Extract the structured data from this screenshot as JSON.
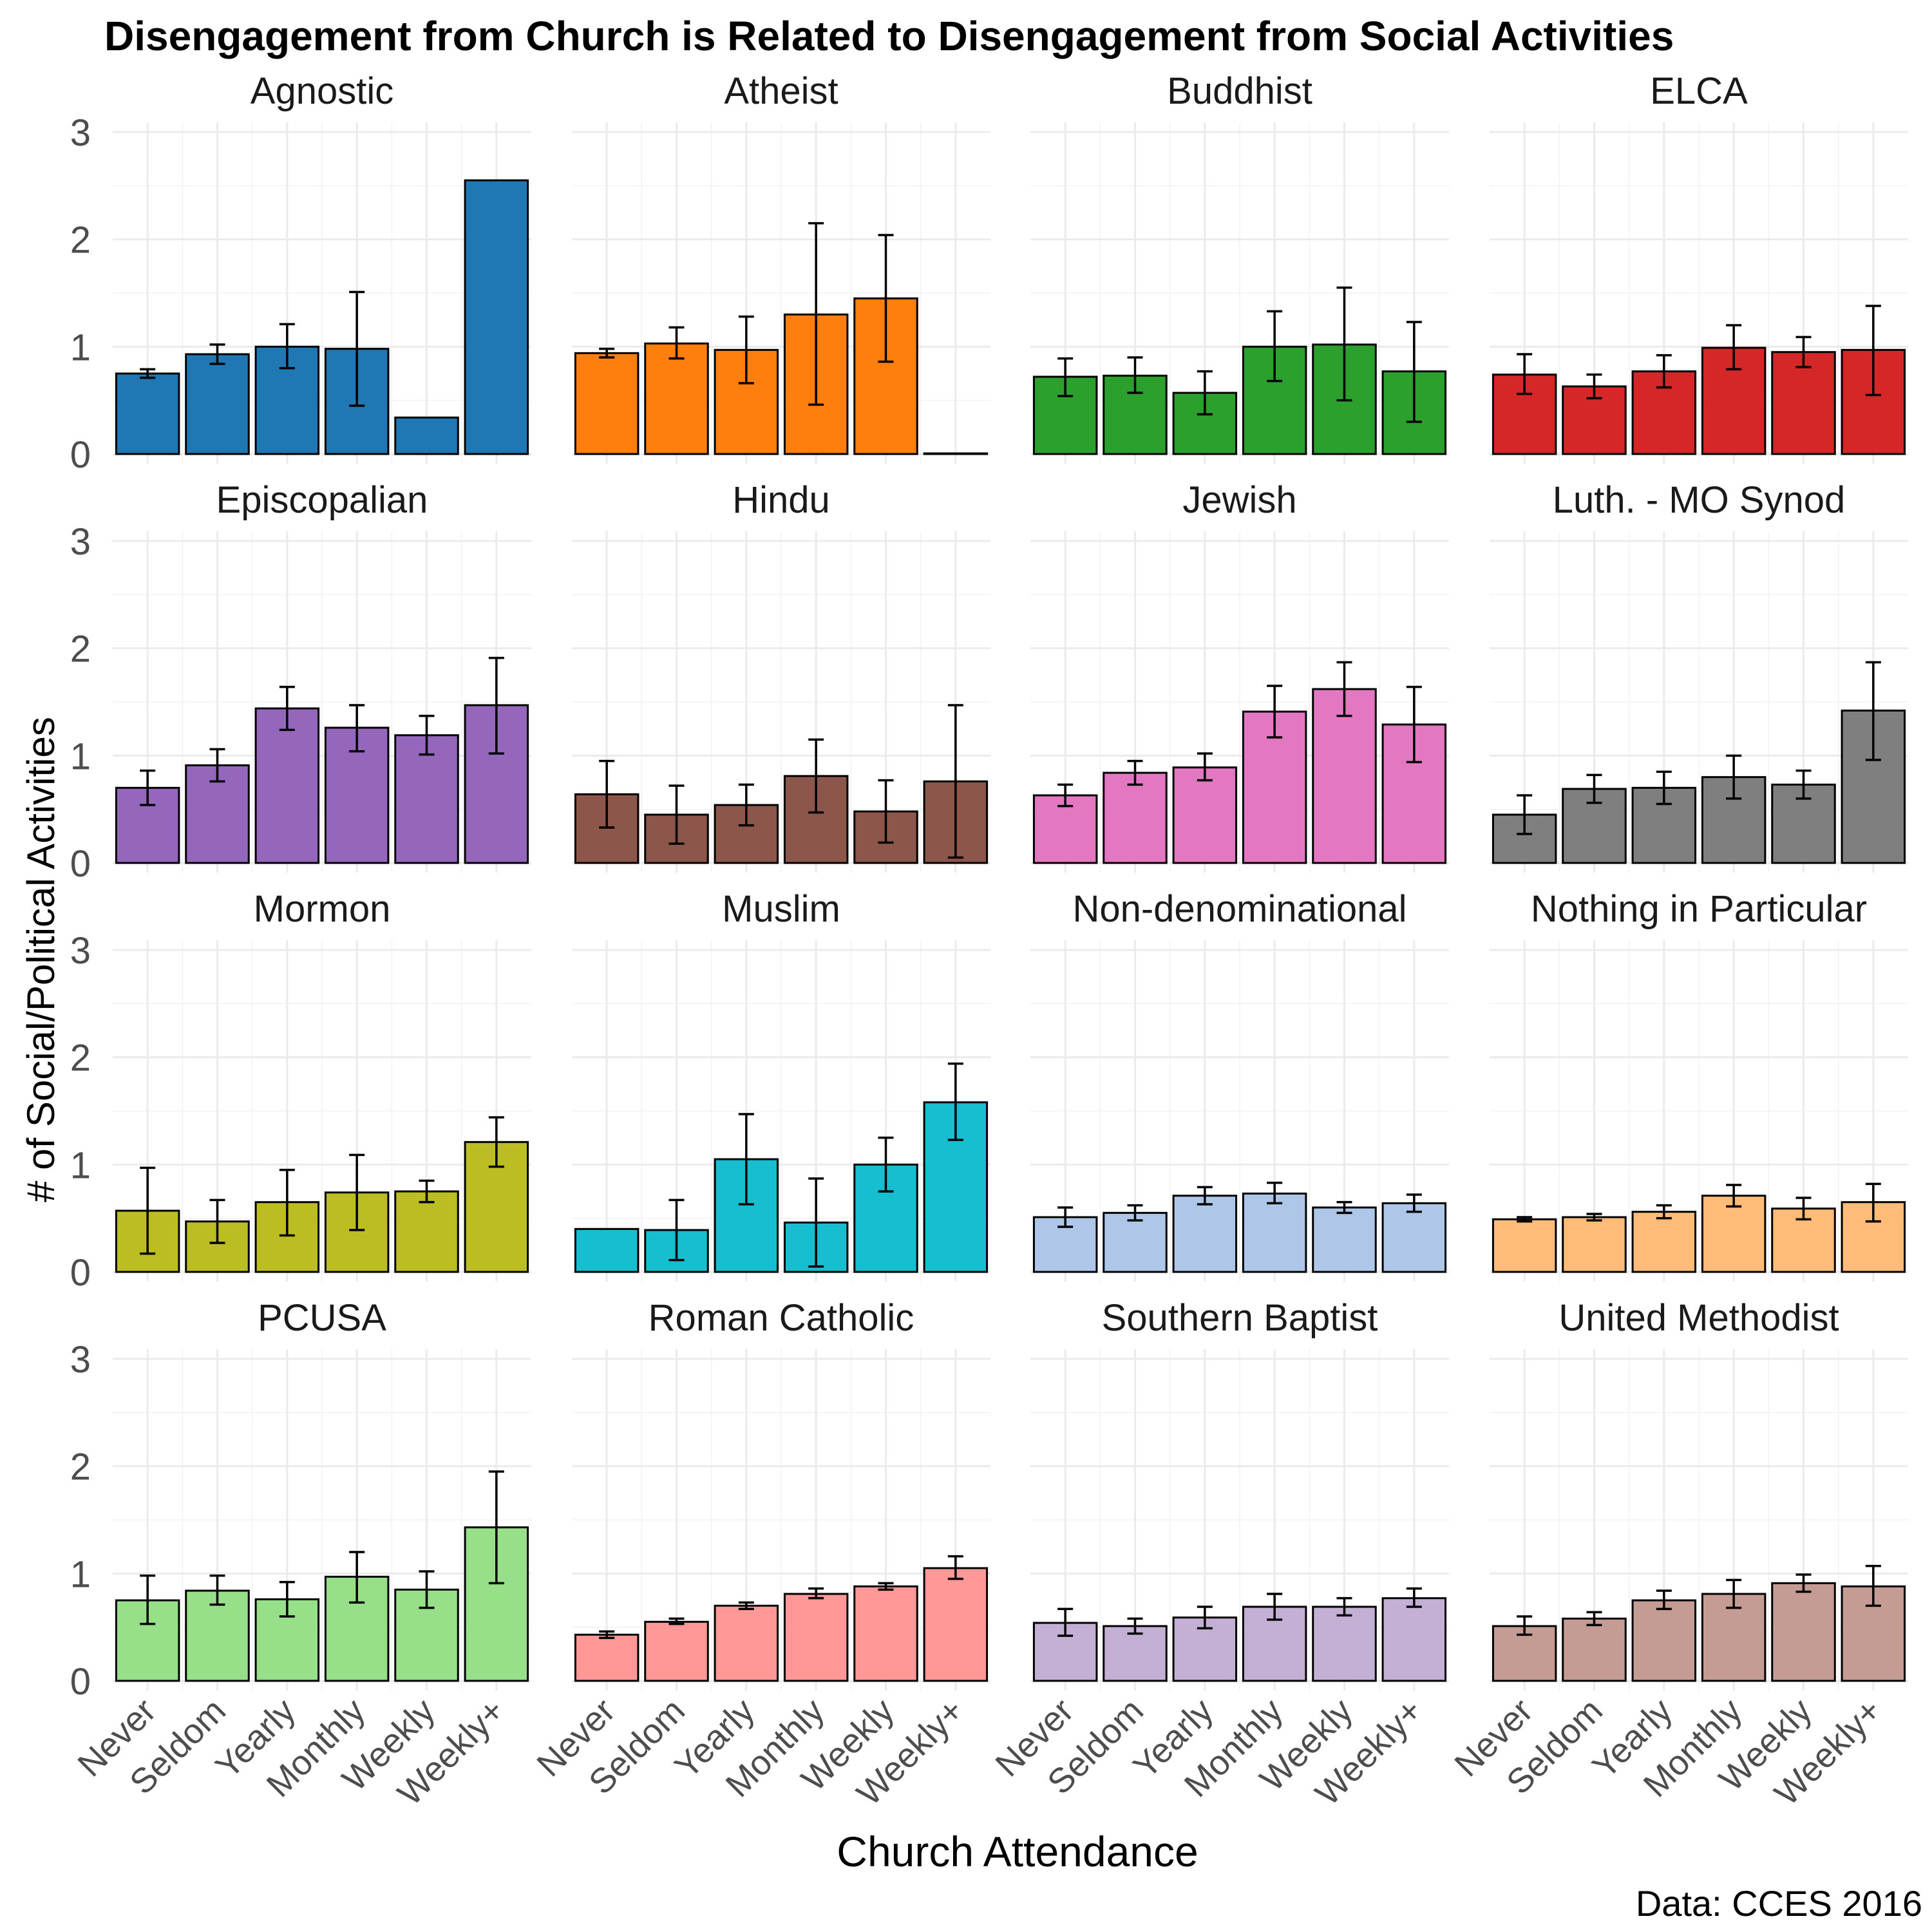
{
  "chart_data": {
    "type": "bar",
    "title": "Disengagement from Church is Related to Disengagement from Social Activities",
    "xlabel": "Church Attendance",
    "ylabel": "# of Social/Political Activities",
    "caption": "Data: CCES 2016",
    "categories": [
      "Never",
      "Seldom",
      "Yearly",
      "Monthly",
      "Weekly",
      "Weekly+"
    ],
    "ylim": [
      0,
      3
    ],
    "yticks": [
      0,
      1,
      2,
      3
    ],
    "grid": true,
    "facets": [
      {
        "name": "Agnostic",
        "color": "#1f77b4",
        "values": [
          0.75,
          0.93,
          1.0,
          0.98,
          0.34,
          2.55
        ],
        "err_low": [
          0.71,
          0.84,
          0.8,
          0.45,
          null,
          null
        ],
        "err_high": [
          0.79,
          1.02,
          1.21,
          1.51,
          null,
          null
        ]
      },
      {
        "name": "Atheist",
        "color": "#ff7f0e",
        "values": [
          0.94,
          1.03,
          0.97,
          1.3,
          1.45,
          0.0
        ],
        "err_low": [
          0.9,
          0.89,
          0.66,
          0.46,
          0.86,
          null
        ],
        "err_high": [
          0.98,
          1.18,
          1.28,
          2.15,
          2.04,
          null
        ]
      },
      {
        "name": "Buddhist",
        "color": "#2ca02c",
        "values": [
          0.72,
          0.73,
          0.57,
          1.0,
          1.02,
          0.77
        ],
        "err_low": [
          0.54,
          0.57,
          0.37,
          0.68,
          0.5,
          0.3
        ],
        "err_high": [
          0.89,
          0.9,
          0.77,
          1.33,
          1.55,
          1.23
        ]
      },
      {
        "name": "ELCA",
        "color": "#d62728",
        "values": [
          0.74,
          0.63,
          0.77,
          0.99,
          0.95,
          0.97
        ],
        "err_low": [
          0.56,
          0.52,
          0.62,
          0.79,
          0.81,
          0.55
        ],
        "err_high": [
          0.93,
          0.74,
          0.92,
          1.2,
          1.09,
          1.38
        ]
      },
      {
        "name": "Episcopalian",
        "color": "#9467bd",
        "values": [
          0.7,
          0.91,
          1.44,
          1.26,
          1.19,
          1.47
        ],
        "err_low": [
          0.54,
          0.76,
          1.24,
          1.04,
          1.01,
          1.02
        ],
        "err_high": [
          0.86,
          1.06,
          1.64,
          1.47,
          1.37,
          1.91
        ]
      },
      {
        "name": "Hindu",
        "color": "#8c564b",
        "values": [
          0.64,
          0.45,
          0.54,
          0.81,
          0.48,
          0.76
        ],
        "err_low": [
          0.33,
          0.18,
          0.35,
          0.47,
          0.19,
          0.05
        ],
        "err_high": [
          0.95,
          0.72,
          0.73,
          1.15,
          0.77,
          1.47
        ]
      },
      {
        "name": "Jewish",
        "color": "#e377c2",
        "values": [
          0.63,
          0.84,
          0.89,
          1.41,
          1.62,
          1.29
        ],
        "err_low": [
          0.53,
          0.73,
          0.77,
          1.17,
          1.37,
          0.94
        ],
        "err_high": [
          0.73,
          0.95,
          1.02,
          1.65,
          1.87,
          1.64
        ]
      },
      {
        "name": "Luth. - MO Synod",
        "color": "#7f7f7f",
        "values": [
          0.45,
          0.69,
          0.7,
          0.8,
          0.73,
          1.42
        ],
        "err_low": [
          0.27,
          0.56,
          0.55,
          0.6,
          0.6,
          0.96
        ],
        "err_high": [
          0.63,
          0.82,
          0.85,
          1.0,
          0.86,
          1.87
        ]
      },
      {
        "name": "Mormon",
        "color": "#bcbd22",
        "values": [
          0.57,
          0.47,
          0.65,
          0.74,
          0.75,
          1.21
        ],
        "err_low": [
          0.17,
          0.27,
          0.34,
          0.39,
          0.65,
          0.98
        ],
        "err_high": [
          0.97,
          0.67,
          0.95,
          1.09,
          0.85,
          1.44
        ]
      },
      {
        "name": "Muslim",
        "color": "#17becf",
        "values": [
          0.4,
          0.39,
          1.05,
          0.46,
          1.0,
          1.58
        ],
        "err_low": [
          null,
          0.11,
          0.63,
          0.05,
          0.75,
          1.23
        ],
        "err_high": [
          null,
          0.67,
          1.47,
          0.87,
          1.25,
          1.94
        ]
      },
      {
        "name": "Non-denominational",
        "color": "#aec7e8",
        "values": [
          0.51,
          0.55,
          0.71,
          0.73,
          0.6,
          0.64
        ],
        "err_low": [
          0.42,
          0.48,
          0.63,
          0.64,
          0.55,
          0.56
        ],
        "err_high": [
          0.6,
          0.62,
          0.79,
          0.83,
          0.65,
          0.72
        ]
      },
      {
        "name": "Nothing in Particular",
        "color": "#ffbb78",
        "values": [
          0.49,
          0.51,
          0.56,
          0.71,
          0.59,
          0.65
        ],
        "err_low": [
          0.47,
          0.48,
          0.5,
          0.61,
          0.49,
          0.47
        ],
        "err_high": [
          0.51,
          0.54,
          0.62,
          0.81,
          0.69,
          0.82
        ]
      },
      {
        "name": "PCUSA",
        "color": "#98df8a",
        "values": [
          0.75,
          0.84,
          0.76,
          0.97,
          0.85,
          1.43
        ],
        "err_low": [
          0.53,
          0.71,
          0.6,
          0.73,
          0.68,
          0.91
        ],
        "err_high": [
          0.98,
          0.98,
          0.92,
          1.2,
          1.02,
          1.95
        ]
      },
      {
        "name": "Roman Catholic",
        "color": "#ff9896",
        "values": [
          0.43,
          0.55,
          0.7,
          0.81,
          0.88,
          1.05
        ],
        "err_low": [
          0.4,
          0.53,
          0.67,
          0.77,
          0.85,
          0.95
        ],
        "err_high": [
          0.46,
          0.58,
          0.73,
          0.86,
          0.91,
          1.16
        ]
      },
      {
        "name": "Southern Baptist",
        "color": "#c5b0d5",
        "values": [
          0.54,
          0.51,
          0.59,
          0.69,
          0.69,
          0.77
        ],
        "err_low": [
          0.42,
          0.44,
          0.49,
          0.57,
          0.61,
          0.69
        ],
        "err_high": [
          0.67,
          0.58,
          0.69,
          0.81,
          0.77,
          0.86
        ]
      },
      {
        "name": "United Methodist",
        "color": "#c49c94",
        "values": [
          0.51,
          0.58,
          0.75,
          0.81,
          0.91,
          0.88
        ],
        "err_low": [
          0.43,
          0.52,
          0.67,
          0.68,
          0.83,
          0.7
        ],
        "err_high": [
          0.6,
          0.64,
          0.84,
          0.94,
          0.99,
          1.07
        ]
      }
    ]
  }
}
